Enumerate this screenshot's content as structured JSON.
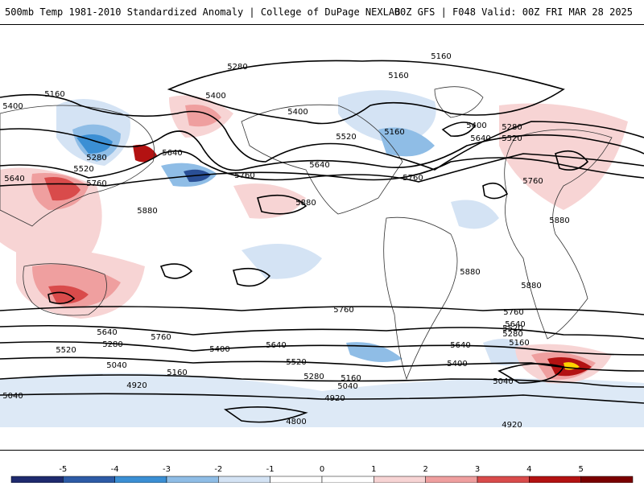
{
  "header": {
    "title_left": "500mb Temp 1981-2010 Standardized Anomaly | College of DuPage NEXLAB",
    "title_right": "00Z GFS | F048 Valid: 00Z FRI MAR 28 2025"
  },
  "colors": {
    "warm1": "#f7d4d4",
    "warm2": "#ef9f9f",
    "warm3": "#d94b4b",
    "warm4": "#b31212",
    "warm5": "#7a0000",
    "extreme_warm": "#ffd400",
    "cool1": "#d4e3f4",
    "cool2": "#8fbde6",
    "cool3": "#3b8fd4",
    "cool4": "#2a4f96",
    "extreme_cool": "#5a3a9c"
  },
  "colorbar": {
    "ticks": [
      "-5",
      "-4",
      "-3",
      "-2",
      "-1",
      "0",
      "1",
      "2",
      "3",
      "4",
      "5"
    ],
    "segment_colors": [
      "#1f2a6e",
      "#2d5ba6",
      "#3b8fd4",
      "#8fbde6",
      "#d4e3f4",
      "#ffffff",
      "#ffffff",
      "#f7d4d4",
      "#ef9f9f",
      "#d94b4b",
      "#b31212",
      "#7a0000"
    ]
  },
  "contour_labels": [
    "5160",
    "5280",
    "5160",
    "5400",
    "5160",
    "5400",
    "5400",
    "5160",
    "5400",
    "5280",
    "5520",
    "5640",
    "5520",
    "5640",
    "5280",
    "5520",
    "5640",
    "5760",
    "5640",
    "5760",
    "5760",
    "5880",
    "5880",
    "5760",
    "5880",
    "5880",
    "5880",
    "5760",
    "5760",
    "5640",
    "5520",
    "5280",
    "5160",
    "5760",
    "5640",
    "5520",
    "5640",
    "5400",
    "5280",
    "5040",
    "5640",
    "5400",
    "5520",
    "5160",
    "5280",
    "5160",
    "5040",
    "5040",
    "5040",
    "4920",
    "4920",
    "4800",
    "4920"
  ]
}
